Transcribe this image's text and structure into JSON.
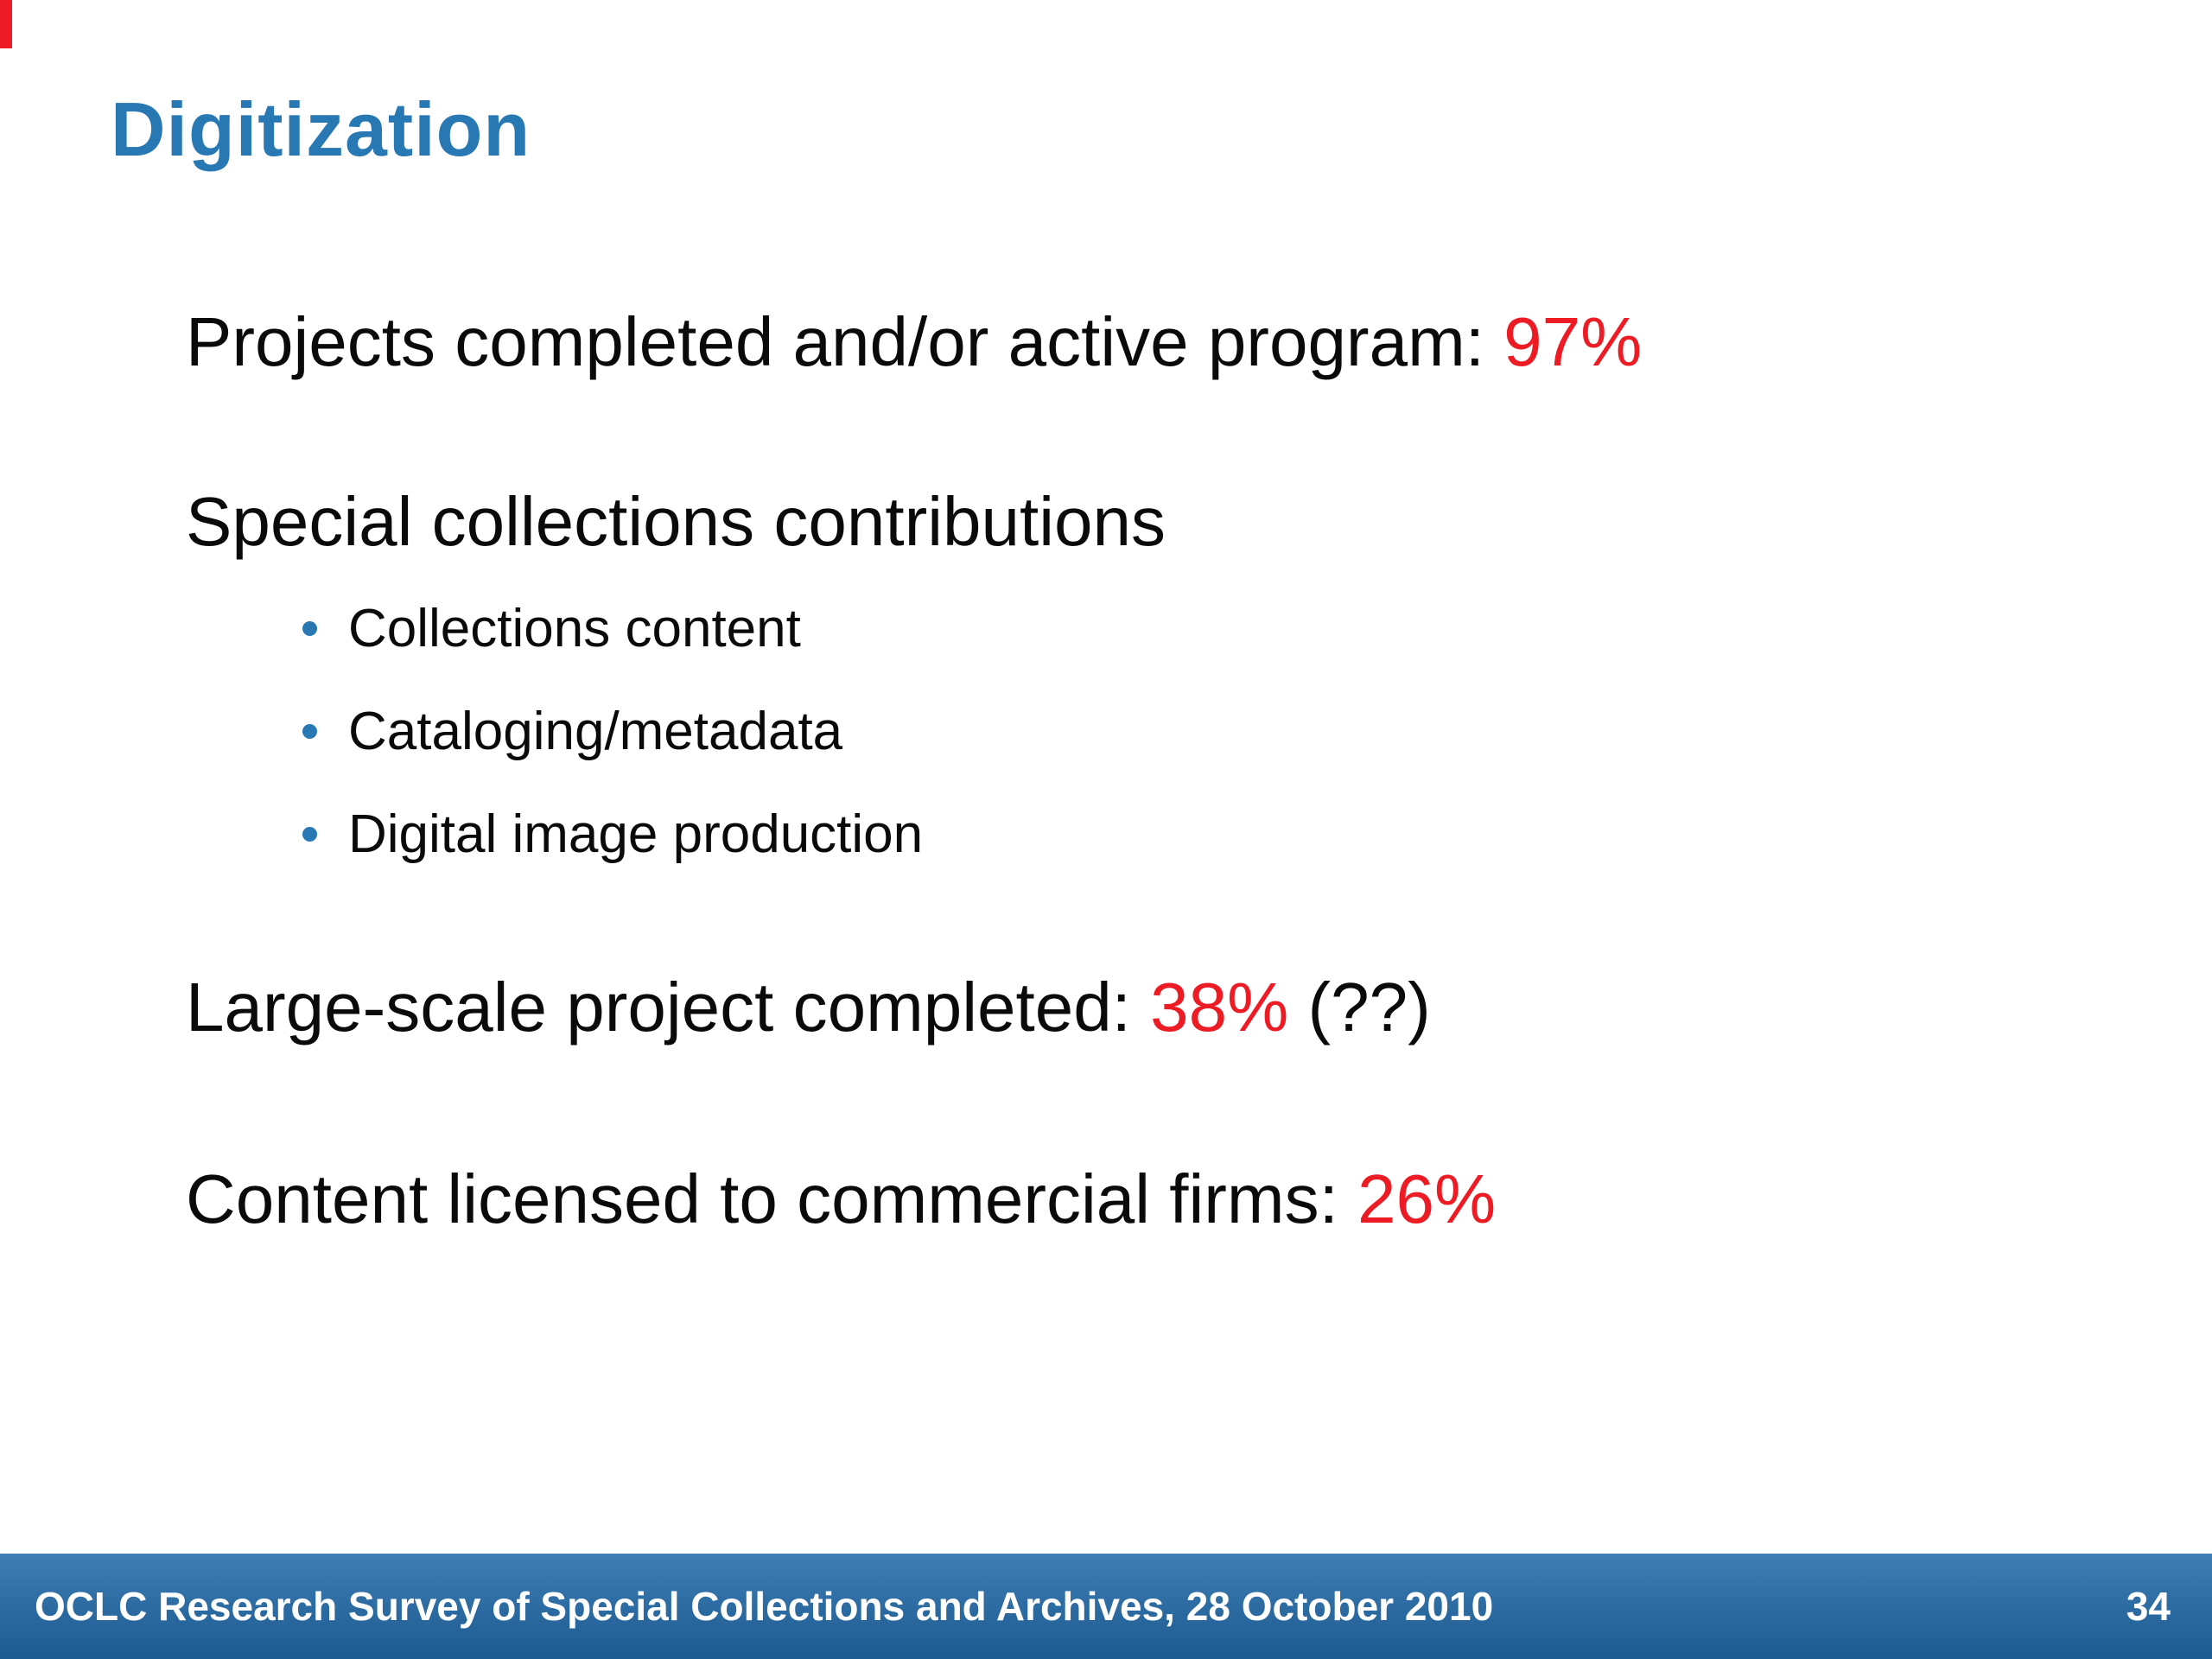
{
  "colors": {
    "title_blue": "#2878b4",
    "highlight_red": "#ed1c24",
    "bullet_blue": "#2878b4",
    "footer_blue_top": "#3f7fb5",
    "footer_blue_bottom": "#1d5a90"
  },
  "slide": {
    "title": "Digitization",
    "line1": {
      "prefix": "Projects completed and/or active program: ",
      "value": "97%"
    },
    "section": {
      "heading": "Special collections contributions",
      "bullets": [
        "Collections content",
        "Cataloging/metadata",
        "Digital image production"
      ]
    },
    "line2": {
      "prefix": "Large-scale project completed: ",
      "value": "38%",
      "suffix": " (??)"
    },
    "line3": {
      "prefix": "Content licensed to commercial firms: ",
      "value": "26%"
    },
    "footer": {
      "left": "OCLC Research Survey of Special Collections and Archives, 28 October 2010",
      "page": "34"
    }
  }
}
